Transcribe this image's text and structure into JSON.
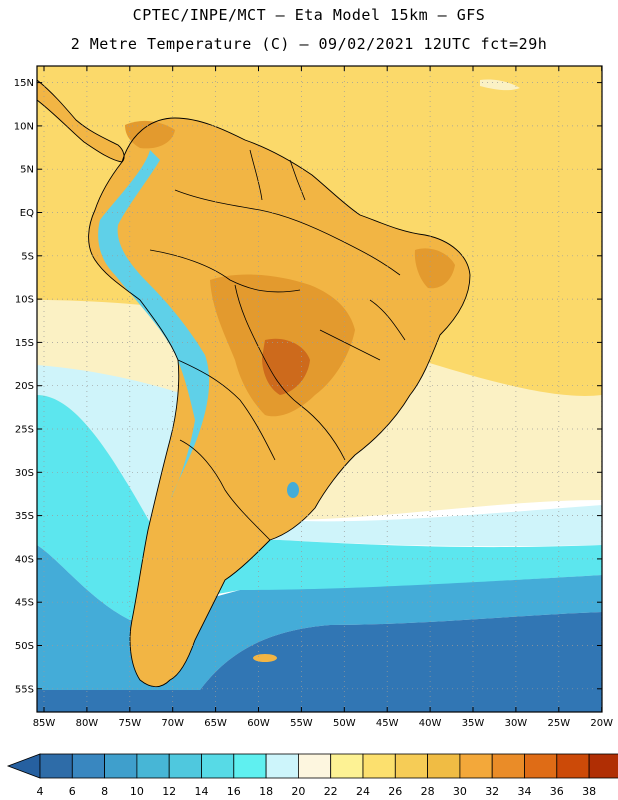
{
  "header": {
    "title_line1": "CPTEC/INPE/MCT –  Eta Model 15km – GFS",
    "title_line2": "2 Metre Temperature (C) – 09/02/2021 12UTC fct=29h"
  },
  "map": {
    "lat_labels": [
      "15N",
      "10N",
      "5N",
      "EQ",
      "5S",
      "10S",
      "15S",
      "20S",
      "25S",
      "30S",
      "35S",
      "40S",
      "45S",
      "50S",
      "55S"
    ],
    "lon_labels": [
      "85W",
      "80W",
      "75W",
      "70W",
      "65W",
      "60W",
      "55W",
      "50W",
      "45W",
      "40W",
      "35W",
      "30W",
      "25W",
      "20W"
    ]
  },
  "colorbar": {
    "values": [
      "4",
      "6",
      "8",
      "10",
      "12",
      "14",
      "16",
      "18",
      "20",
      "22",
      "24",
      "26",
      "28",
      "30",
      "32",
      "34",
      "36",
      "38"
    ],
    "colors": [
      "#2e6ca8",
      "#3987c0",
      "#3f9fcc",
      "#47b6d6",
      "#4fc8de",
      "#57dae6",
      "#5ff0f0",
      "#cdf5fb",
      "#fdf6df",
      "#fdf294",
      "#fce06e",
      "#f6cc56",
      "#f0bc44",
      "#f3a83a",
      "#ea8c28",
      "#df6c16",
      "#cc4a08",
      "#b02e04"
    ],
    "low_color": "#2660a0",
    "high_color": "#a02a06"
  },
  "palette": {
    "ocean_cold": "#3176b4",
    "ocean_cool": "#44acd8",
    "ocean_cyan": "#5ce6ee",
    "ocean_pale": "#cff4fa",
    "ocean_cream": "#fbf1c4",
    "ocean_warm": "#fbd96a",
    "land_hot": "#e39a2e",
    "land_very_hot": "#cd6a1c",
    "land_warm": "#f2b544",
    "andes_cold": "#5fd0e8",
    "border_line": "#000000",
    "grid_dot": "#9a9a9a"
  }
}
